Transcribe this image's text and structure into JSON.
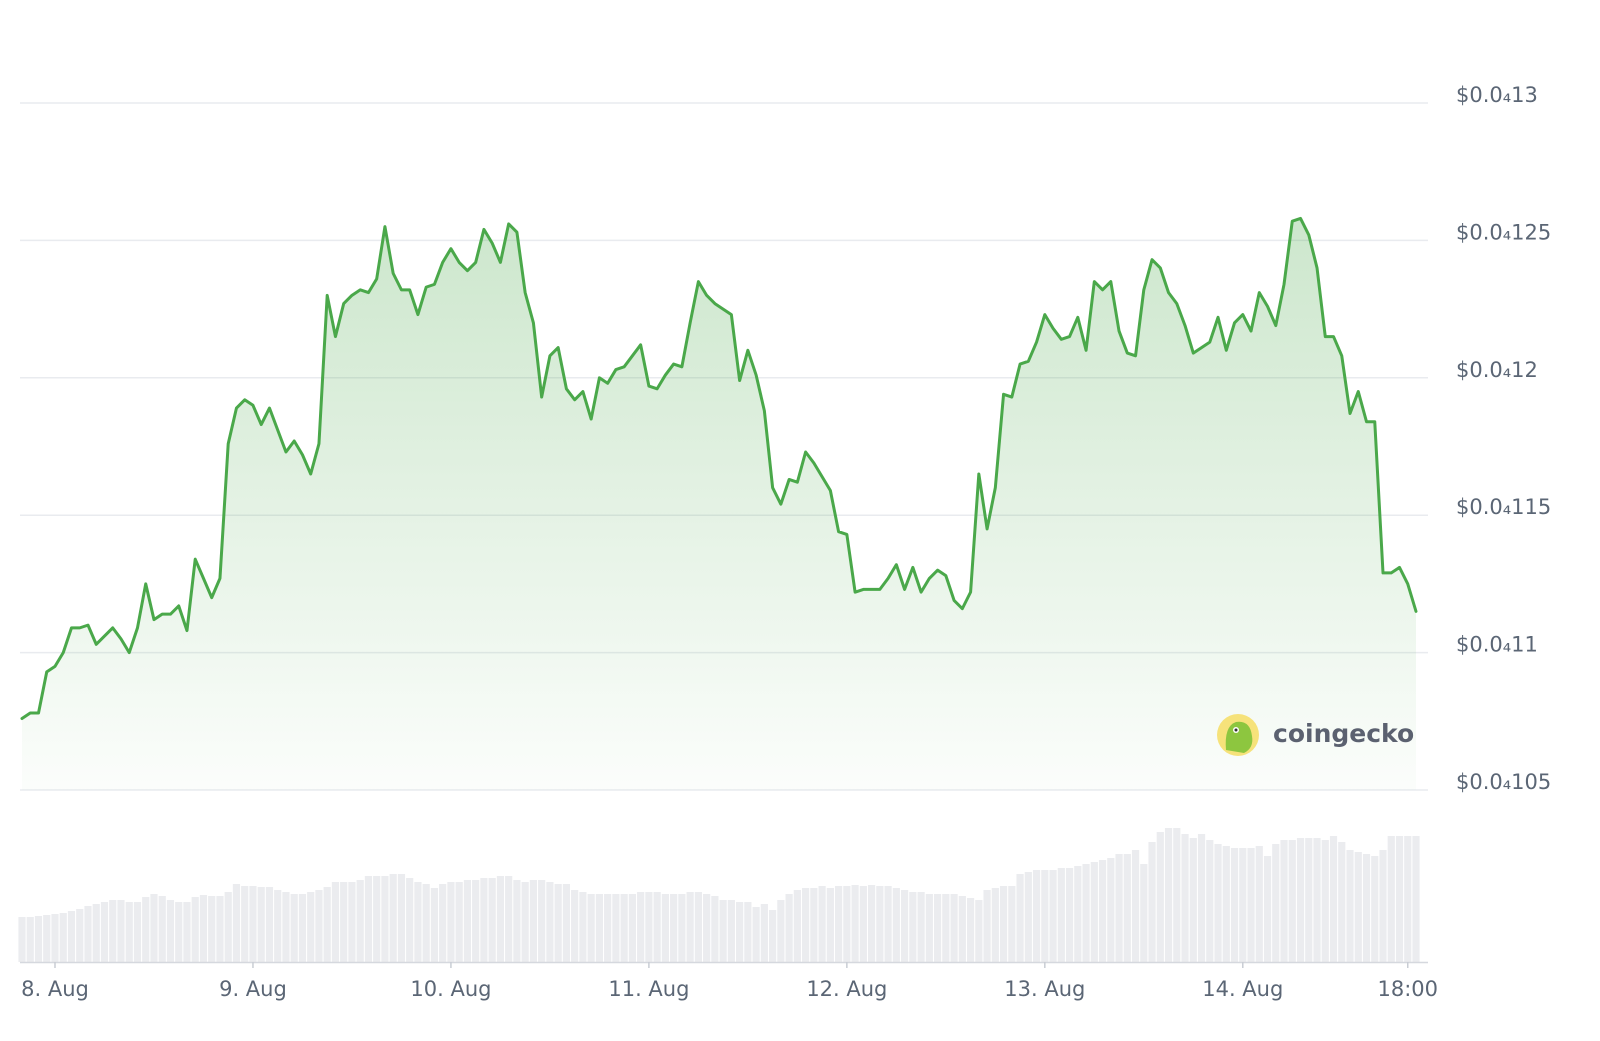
{
  "chart_data": {
    "type": "area",
    "color": "#4aa84a",
    "volume_color": "#ebecef",
    "grid": true,
    "watermark": "coingecko",
    "ylim": [
      1.05e-05,
      1.3e-05
    ],
    "yticks": [
      {
        "value": 1.3e-05,
        "label": "$0.0₄13"
      },
      {
        "value": 1.25e-05,
        "label": "$0.0₄125"
      },
      {
        "value": 1.2e-05,
        "label": "$0.0₄12"
      },
      {
        "value": 1.15e-05,
        "label": "$0.0₄115"
      },
      {
        "value": 1.1e-05,
        "label": "$0.0₄11"
      },
      {
        "value": 1.05e-05,
        "label": "$0.0₄105"
      }
    ],
    "categories": [
      null,
      null,
      null,
      null,
      "8. Aug",
      null,
      null,
      null,
      null,
      null,
      null,
      null,
      null,
      null,
      null,
      null,
      null,
      null,
      null,
      null,
      null,
      null,
      null,
      null,
      null,
      null,
      null,
      null,
      "9. Aug",
      null,
      null,
      null,
      null,
      null,
      null,
      null,
      null,
      null,
      null,
      null,
      null,
      null,
      null,
      null,
      null,
      null,
      null,
      null,
      null,
      null,
      null,
      null,
      "10. Aug",
      null,
      null,
      null,
      null,
      null,
      null,
      null,
      null,
      null,
      null,
      null,
      null,
      null,
      null,
      null,
      null,
      null,
      null,
      null,
      null,
      null,
      null,
      null,
      "11. Aug",
      null,
      null,
      null,
      null,
      null,
      null,
      null,
      null,
      null,
      null,
      null,
      null,
      null,
      null,
      null,
      null,
      null,
      null,
      null,
      null,
      null,
      null,
      null,
      "12. Aug",
      null,
      null,
      null,
      null,
      null,
      null,
      null,
      null,
      null,
      null,
      null,
      null,
      null,
      null,
      null,
      null,
      null,
      null,
      null,
      null,
      null,
      null,
      null,
      "13. Aug",
      null,
      null,
      null,
      null,
      null,
      null,
      null,
      null,
      null,
      null,
      null,
      null,
      null,
      null,
      null,
      null,
      null,
      null,
      null,
      null,
      null,
      null,
      null,
      "14. Aug",
      null,
      null,
      null,
      null,
      null,
      null,
      null,
      null,
      null,
      null,
      null,
      null,
      null,
      null,
      null,
      null,
      null,
      null,
      null,
      "18:00",
      null
    ],
    "values": [
      1.076e-05,
      1.078e-05,
      1.078e-05,
      1.093e-05,
      1.095e-05,
      1.1e-05,
      1.109e-05,
      1.109e-05,
      1.11e-05,
      1.103e-05,
      1.106e-05,
      1.109e-05,
      1.105e-05,
      1.1e-05,
      1.109e-05,
      1.125e-05,
      1.112e-05,
      1.114e-05,
      1.114e-05,
      1.117e-05,
      1.108e-05,
      1.134e-05,
      1.127e-05,
      1.12e-05,
      1.127e-05,
      1.176e-05,
      1.189e-05,
      1.192e-05,
      1.19e-05,
      1.183e-05,
      1.189e-05,
      1.181e-05,
      1.173e-05,
      1.177e-05,
      1.172e-05,
      1.165e-05,
      1.176e-05,
      1.23e-05,
      1.215e-05,
      1.227e-05,
      1.23e-05,
      1.232e-05,
      1.231e-05,
      1.236e-05,
      1.255e-05,
      1.238e-05,
      1.232e-05,
      1.232e-05,
      1.223e-05,
      1.233e-05,
      1.234e-05,
      1.242e-05,
      1.247e-05,
      1.242e-05,
      1.239e-05,
      1.242e-05,
      1.254e-05,
      1.249e-05,
      1.242e-05,
      1.256e-05,
      1.253e-05,
      1.231e-05,
      1.22e-05,
      1.193e-05,
      1.208e-05,
      1.211e-05,
      1.196e-05,
      1.192e-05,
      1.195e-05,
      1.185e-05,
      1.2e-05,
      1.198e-05,
      1.203e-05,
      1.204e-05,
      1.208e-05,
      1.212e-05,
      1.197e-05,
      1.196e-05,
      1.201e-05,
      1.205e-05,
      1.204e-05,
      1.22e-05,
      1.235e-05,
      1.23e-05,
      1.227e-05,
      1.225e-05,
      1.223e-05,
      1.199e-05,
      1.21e-05,
      1.201e-05,
      1.188e-05,
      1.16e-05,
      1.154e-05,
      1.163e-05,
      1.162e-05,
      1.173e-05,
      1.169e-05,
      1.164e-05,
      1.159e-05,
      1.144e-05,
      1.143e-05,
      1.122e-05,
      1.123e-05,
      1.123e-05,
      1.123e-05,
      1.127e-05,
      1.132e-05,
      1.123e-05,
      1.131e-05,
      1.122e-05,
      1.127e-05,
      1.13e-05,
      1.128e-05,
      1.119e-05,
      1.116e-05,
      1.122e-05,
      1.165e-05,
      1.145e-05,
      1.16e-05,
      1.194e-05,
      1.193e-05,
      1.205e-05,
      1.206e-05,
      1.213e-05,
      1.223e-05,
      1.218e-05,
      1.214e-05,
      1.215e-05,
      1.222e-05,
      1.21e-05,
      1.235e-05,
      1.232e-05,
      1.235e-05,
      1.217e-05,
      1.209e-05,
      1.208e-05,
      1.232e-05,
      1.243e-05,
      1.24e-05,
      1.231e-05,
      1.227e-05,
      1.219e-05,
      1.209e-05,
      1.211e-05,
      1.213e-05,
      1.222e-05,
      1.21e-05,
      1.22e-05,
      1.223e-05,
      1.217e-05,
      1.231e-05,
      1.226e-05,
      1.219e-05,
      1.234e-05,
      1.257e-05,
      1.258e-05,
      1.252e-05,
      1.24e-05,
      1.215e-05,
      1.215e-05,
      1.208e-05,
      1.187e-05,
      1.195e-05,
      1.184e-05,
      1.184e-05,
      1.129e-05,
      1.129e-05,
      1.131e-05,
      1.125e-05,
      1.115e-05
    ],
    "volume": [
      45,
      45,
      46,
      47,
      48,
      49,
      51,
      53,
      56,
      58,
      60,
      62,
      62,
      60,
      60,
      65,
      68,
      66,
      62,
      60,
      60,
      65,
      67,
      66,
      66,
      70,
      78,
      76,
      76,
      75,
      75,
      72,
      70,
      68,
      68,
      70,
      72,
      75,
      80,
      80,
      80,
      82,
      86,
      86,
      86,
      88,
      88,
      84,
      80,
      78,
      74,
      78,
      80,
      80,
      82,
      82,
      84,
      84,
      86,
      86,
      82,
      80,
      82,
      82,
      80,
      78,
      78,
      72,
      70,
      68,
      68,
      68,
      68,
      68,
      68,
      70,
      70,
      70,
      68,
      68,
      68,
      70,
      70,
      68,
      66,
      62,
      62,
      60,
      60,
      55,
      58,
      52,
      62,
      68,
      72,
      74,
      74,
      76,
      74,
      76,
      76,
      77,
      76,
      77,
      76,
      76,
      74,
      72,
      70,
      70,
      68,
      68,
      68,
      68,
      66,
      64,
      62,
      72,
      74,
      76,
      76,
      88,
      90,
      92,
      92,
      92,
      94,
      94,
      96,
      98,
      100,
      102,
      104,
      108,
      108,
      112,
      98,
      120,
      130,
      134,
      134,
      128,
      124,
      128,
      122,
      118,
      116,
      114,
      114,
      114,
      116,
      106,
      118,
      122,
      122,
      124,
      124,
      124,
      122,
      126,
      120,
      112,
      110,
      108,
      106,
      112,
      126,
      126,
      126,
      126
    ]
  }
}
